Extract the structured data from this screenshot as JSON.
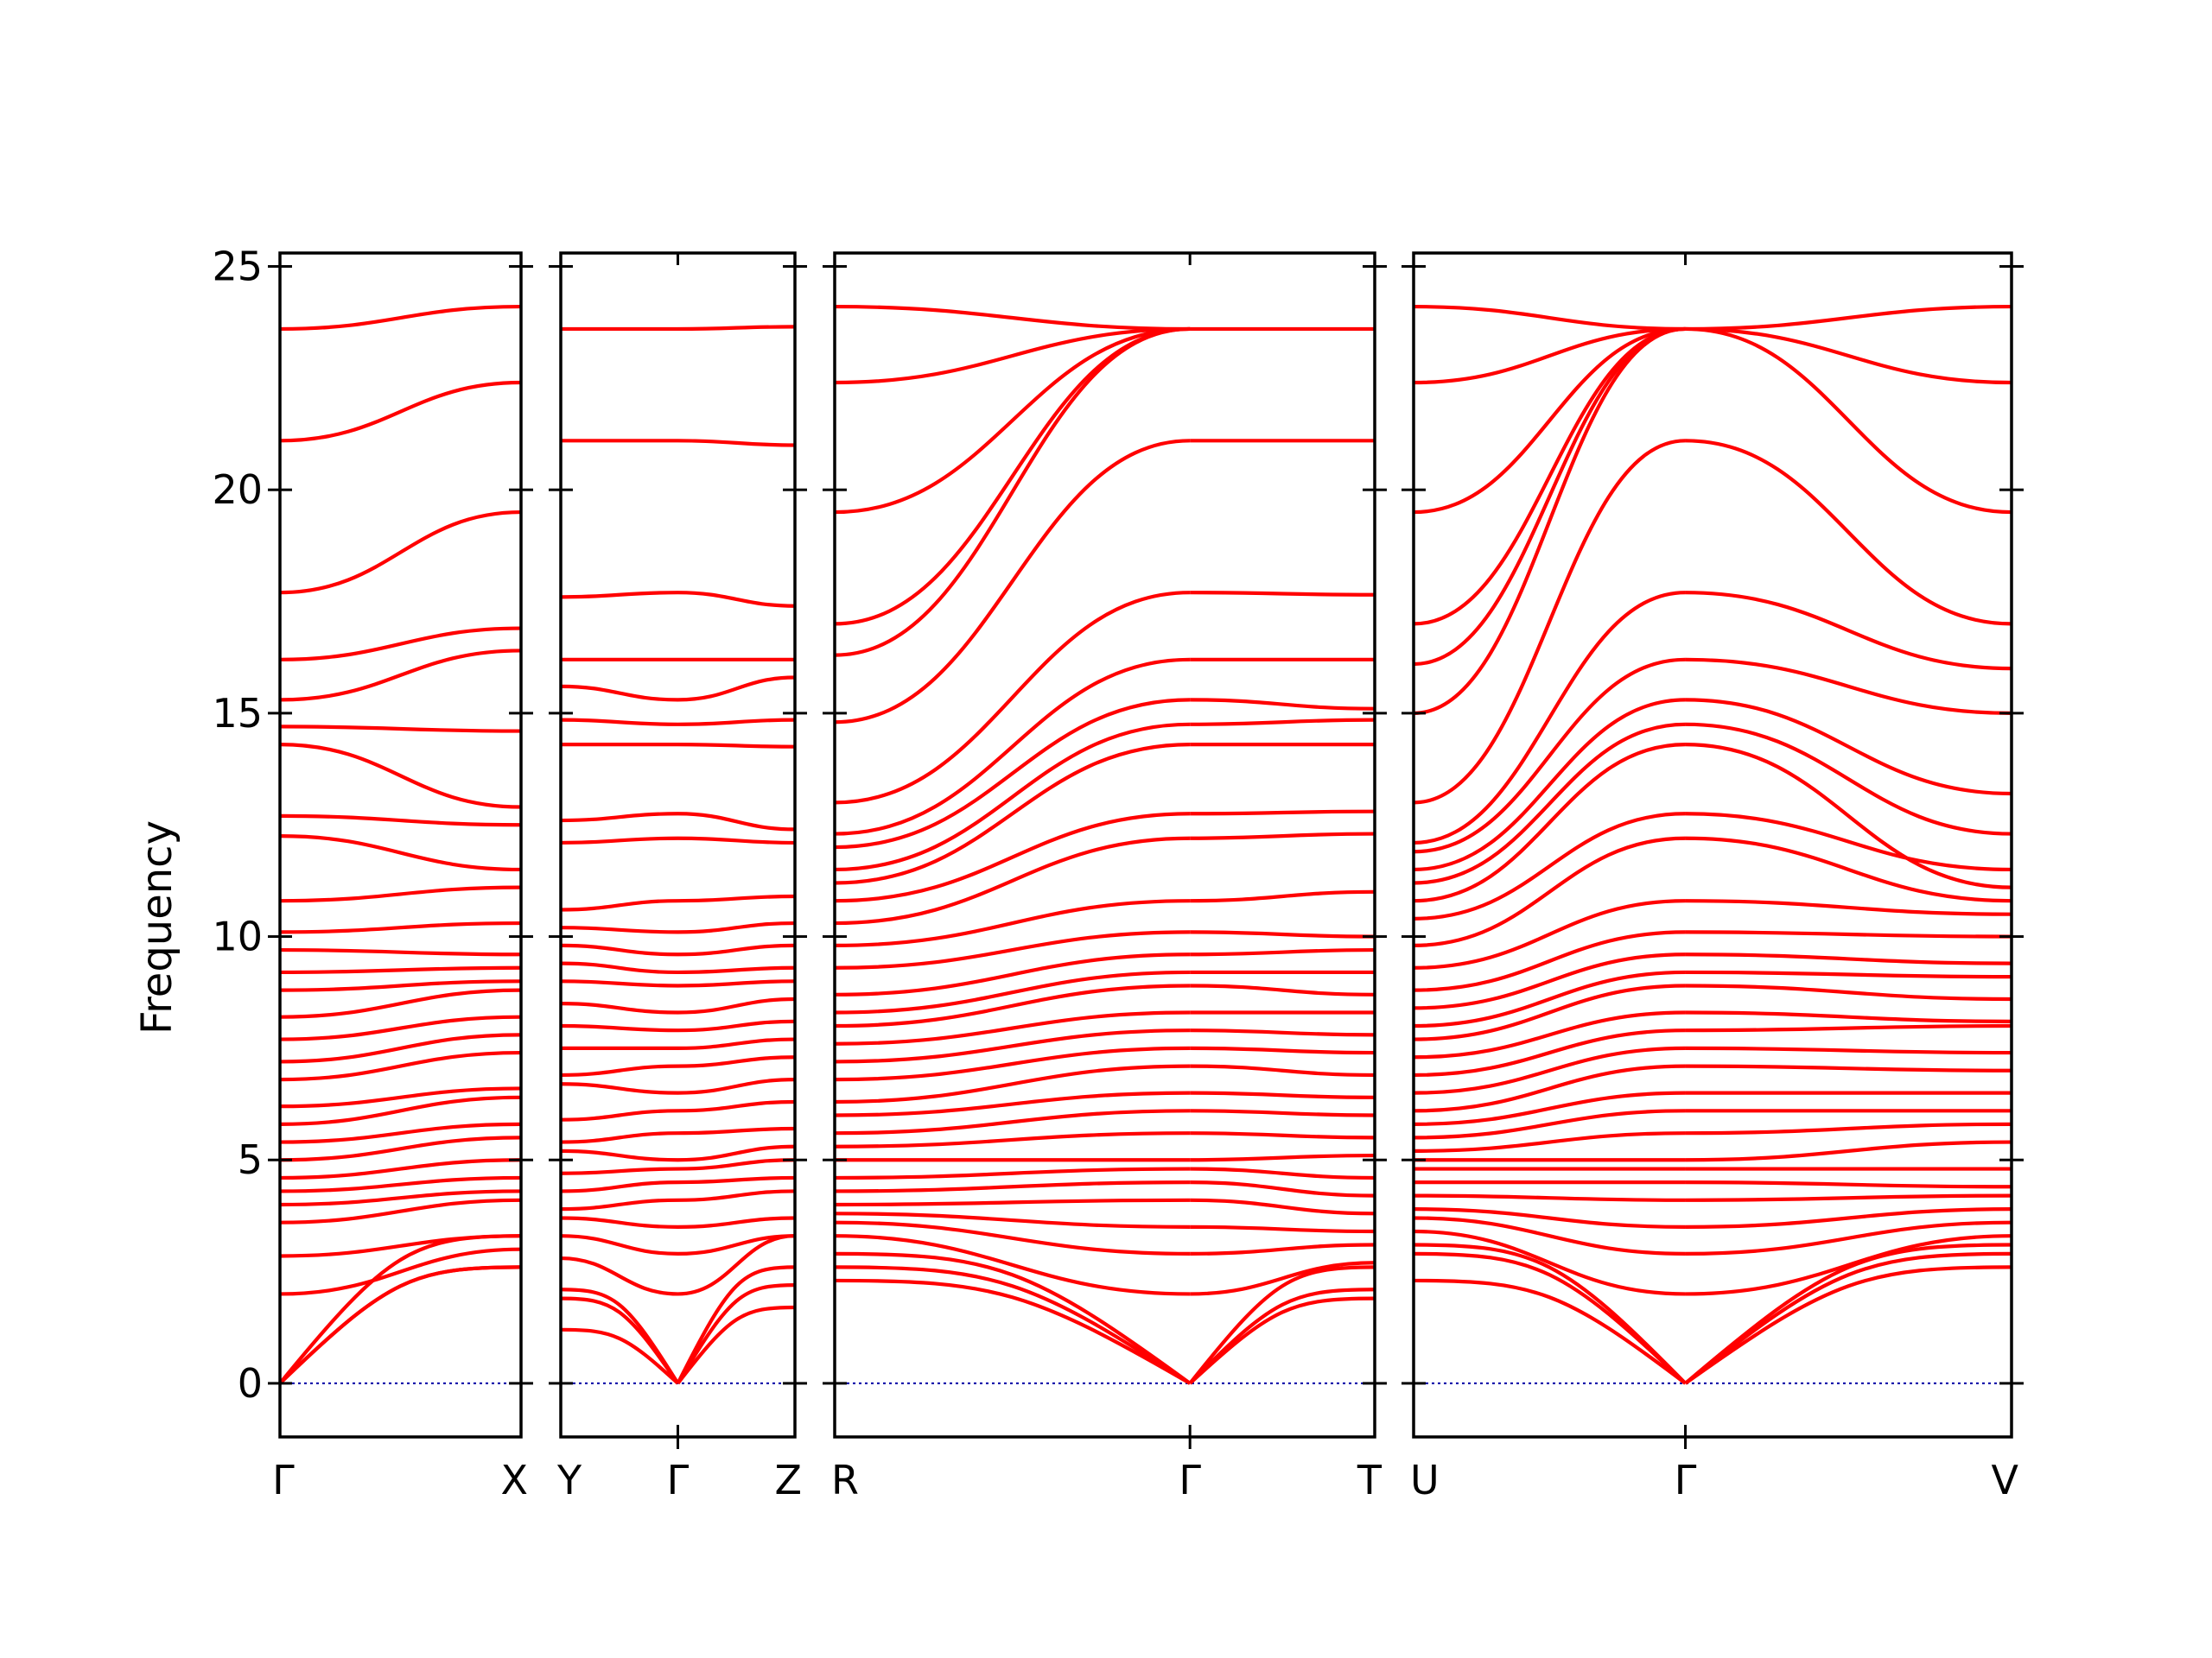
{
  "chart_data": {
    "type": "line",
    "title": "",
    "ylabel": "Frequency",
    "xlabel": "",
    "ylim": [
      -1.2,
      25.3
    ],
    "yticks": [
      0,
      5,
      10,
      15,
      20,
      25
    ],
    "grid": false,
    "legend": "none",
    "colors": {
      "bands": "#ff0000",
      "zero_line": "#0000aa",
      "axes": "#000000"
    },
    "panels": [
      {
        "labels": [
          "Γ",
          "X"
        ],
        "high_symmetry": [
          0,
          1
        ],
        "segments": [
          {
            "x": [
              0,
              1
            ],
            "bands": [
              [
                0,
                2.6
              ],
              [
                0,
                2.6
              ],
              [
                0,
                3.3
              ],
              [
                2.0,
                3.0
              ],
              [
                2.85,
                3.3
              ],
              [
                3.6,
                4.1
              ],
              [
                4.0,
                4.3
              ],
              [
                4.3,
                4.6
              ],
              [
                4.6,
                5.0
              ],
              [
                5.0,
                5.5
              ],
              [
                5.4,
                5.8
              ],
              [
                5.8,
                6.4
              ],
              [
                6.2,
                6.6
              ],
              [
                6.8,
                7.4
              ],
              [
                7.2,
                7.8
              ],
              [
                7.7,
                8.2
              ],
              [
                8.2,
                8.8
              ],
              [
                8.8,
                9.0
              ],
              [
                9.2,
                9.3
              ],
              [
                9.7,
                9.6
              ],
              [
                10.1,
                10.3
              ],
              [
                10.8,
                11.1
              ],
              [
                12.25,
                11.5
              ],
              [
                12.7,
                12.5
              ],
              [
                14.3,
                12.9
              ],
              [
                14.7,
                14.6
              ],
              [
                15.3,
                16.4
              ],
              [
                16.2,
                16.9
              ],
              [
                17.7,
                19.5
              ],
              [
                21.1,
                22.4
              ],
              [
                23.6,
                24.1
              ]
            ]
          }
        ]
      },
      {
        "labels": [
          "Y",
          "Γ",
          "Z"
        ],
        "high_symmetry": [
          0,
          1,
          2
        ],
        "segments": [
          {
            "x": [
              0,
              1
            ],
            "bands": [
              [
                1.2,
                0
              ],
              [
                1.9,
                0
              ],
              [
                2.1,
                0
              ],
              [
                2.8,
                2.0
              ],
              [
                3.3,
                2.9
              ],
              [
                3.7,
                3.5
              ],
              [
                3.9,
                4.1
              ],
              [
                4.3,
                4.5
              ],
              [
                4.7,
                4.8
              ],
              [
                5.2,
                5.0
              ],
              [
                5.4,
                5.6
              ],
              [
                5.9,
                6.1
              ],
              [
                6.7,
                6.5
              ],
              [
                6.9,
                7.1
              ],
              [
                7.5,
                7.5
              ],
              [
                8.0,
                7.9
              ],
              [
                8.5,
                8.3
              ],
              [
                9.0,
                8.9
              ],
              [
                9.4,
                9.2
              ],
              [
                9.8,
                9.6
              ],
              [
                10.2,
                10.1
              ],
              [
                10.6,
                10.8
              ],
              [
                12.1,
                12.2
              ],
              [
                12.6,
                12.75
              ],
              [
                14.3,
                14.3
              ],
              [
                14.85,
                14.75
              ],
              [
                15.6,
                15.3
              ],
              [
                16.2,
                16.2
              ],
              [
                17.6,
                17.7
              ],
              [
                21.1,
                21.1
              ],
              [
                23.6,
                23.6
              ]
            ]
          },
          {
            "x": [
              1,
              2
            ],
            "bands": [
              [
                0,
                1.7
              ],
              [
                0,
                2.2
              ],
              [
                0,
                2.6
              ],
              [
                2.0,
                3.3
              ],
              [
                2.9,
                3.3
              ],
              [
                3.5,
                3.7
              ],
              [
                4.1,
                4.3
              ],
              [
                4.5,
                4.6
              ],
              [
                4.8,
                5.0
              ],
              [
                5.0,
                5.3
              ],
              [
                5.6,
                5.7
              ],
              [
                6.1,
                6.3
              ],
              [
                6.5,
                6.8
              ],
              [
                7.1,
                7.3
              ],
              [
                7.5,
                7.7
              ],
              [
                7.9,
                8.1
              ],
              [
                8.3,
                8.6
              ],
              [
                8.9,
                9.0
              ],
              [
                9.2,
                9.3
              ],
              [
                9.6,
                9.8
              ],
              [
                10.1,
                10.3
              ],
              [
                10.8,
                10.9
              ],
              [
                12.2,
                12.1
              ],
              [
                12.75,
                12.4
              ],
              [
                14.3,
                14.25
              ],
              [
                14.75,
                14.85
              ],
              [
                15.3,
                15.8
              ],
              [
                16.2,
                16.2
              ],
              [
                17.7,
                17.4
              ],
              [
                21.1,
                21.0
              ],
              [
                23.6,
                23.65
              ]
            ]
          }
        ]
      },
      {
        "labels": [
          "R",
          "Γ",
          "T"
        ],
        "high_symmetry": [
          0,
          1,
          1.52
        ],
        "segments": [
          {
            "x": [
              0,
              1
            ],
            "bands": [
              [
                2.3,
                0
              ],
              [
                2.6,
                0
              ],
              [
                2.9,
                0
              ],
              [
                3.3,
                2.0
              ],
              [
                3.6,
                2.9
              ],
              [
                3.8,
                3.5
              ],
              [
                4.0,
                4.1
              ],
              [
                4.3,
                4.5
              ],
              [
                4.6,
                4.8
              ],
              [
                5.0,
                5.0
              ],
              [
                5.3,
                5.6
              ],
              [
                5.6,
                6.1
              ],
              [
                6.0,
                6.5
              ],
              [
                6.3,
                7.1
              ],
              [
                6.8,
                7.5
              ],
              [
                7.2,
                7.9
              ],
              [
                7.6,
                8.3
              ],
              [
                8.0,
                8.9
              ],
              [
                8.3,
                9.2
              ],
              [
                8.7,
                9.6
              ],
              [
                9.3,
                10.1
              ],
              [
                9.8,
                10.8
              ],
              [
                10.3,
                12.2
              ],
              [
                10.8,
                12.75
              ],
              [
                11.2,
                14.3
              ],
              [
                11.5,
                14.75
              ],
              [
                12.0,
                15.3
              ],
              [
                12.3,
                16.2
              ],
              [
                13.0,
                17.7
              ],
              [
                14.8,
                21.1
              ],
              [
                16.3,
                23.6
              ],
              [
                17.0,
                23.6
              ],
              [
                19.5,
                23.6
              ],
              [
                22.4,
                23.6
              ],
              [
                24.1,
                23.6
              ]
            ]
          },
          {
            "x": [
              1,
              1.52
            ],
            "bands": [
              [
                0,
                1.9
              ],
              [
                0,
                2.1
              ],
              [
                0,
                2.6
              ],
              [
                2.0,
                2.7
              ],
              [
                2.9,
                3.1
              ],
              [
                3.5,
                3.4
              ],
              [
                4.1,
                3.8
              ],
              [
                4.5,
                4.2
              ],
              [
                4.8,
                4.6
              ],
              [
                5.0,
                5.1
              ],
              [
                5.6,
                5.5
              ],
              [
                6.1,
                6.0
              ],
              [
                6.5,
                6.4
              ],
              [
                7.1,
                6.9
              ],
              [
                7.5,
                7.4
              ],
              [
                7.9,
                7.8
              ],
              [
                8.3,
                8.3
              ],
              [
                8.9,
                8.7
              ],
              [
                9.2,
                9.2
              ],
              [
                9.6,
                9.7
              ],
              [
                10.1,
                10.0
              ],
              [
                10.8,
                11.0
              ],
              [
                12.2,
                12.3
              ],
              [
                12.75,
                12.8
              ],
              [
                14.3,
                14.3
              ],
              [
                14.75,
                14.85
              ],
              [
                15.3,
                15.1
              ],
              [
                16.2,
                16.2
              ],
              [
                17.7,
                17.65
              ],
              [
                21.1,
                21.1
              ],
              [
                23.6,
                23.6
              ]
            ]
          }
        ]
      },
      {
        "labels": [
          "U",
          "Γ",
          "V"
        ],
        "high_symmetry": [
          0,
          1,
          2.2
        ],
        "segments": [
          {
            "x": [
              0,
              1
            ],
            "bands": [
              [
                2.3,
                0
              ],
              [
                2.9,
                0
              ],
              [
                3.1,
                0
              ],
              [
                3.4,
                2.0
              ],
              [
                3.7,
                2.9
              ],
              [
                3.9,
                3.5
              ],
              [
                4.2,
                4.1
              ],
              [
                4.5,
                4.5
              ],
              [
                4.8,
                4.8
              ],
              [
                5.0,
                5.0
              ],
              [
                5.2,
                5.6
              ],
              [
                5.5,
                6.1
              ],
              [
                5.8,
                6.5
              ],
              [
                6.1,
                7.1
              ],
              [
                6.5,
                7.5
              ],
              [
                6.9,
                7.9
              ],
              [
                7.3,
                8.3
              ],
              [
                7.7,
                8.9
              ],
              [
                8.0,
                9.2
              ],
              [
                8.4,
                9.6
              ],
              [
                8.8,
                10.1
              ],
              [
                9.3,
                10.8
              ],
              [
                9.8,
                12.2
              ],
              [
                10.4,
                12.75
              ],
              [
                10.8,
                14.3
              ],
              [
                11.2,
                14.75
              ],
              [
                11.5,
                15.3
              ],
              [
                11.9,
                16.2
              ],
              [
                12.1,
                17.7
              ],
              [
                13.0,
                21.1
              ],
              [
                15.0,
                23.6
              ],
              [
                16.1,
                23.6
              ],
              [
                17.0,
                23.6
              ],
              [
                19.5,
                23.6
              ],
              [
                22.4,
                23.6
              ],
              [
                24.1,
                23.6
              ]
            ]
          },
          {
            "x": [
              1,
              2.2
            ],
            "bands": [
              [
                0,
                2.6
              ],
              [
                0,
                2.9
              ],
              [
                0,
                3.1
              ],
              [
                2.0,
                3.3
              ],
              [
                2.9,
                3.6
              ],
              [
                3.5,
                3.9
              ],
              [
                4.1,
                4.2
              ],
              [
                4.5,
                4.4
              ],
              [
                4.8,
                4.8
              ],
              [
                5.0,
                5.4
              ],
              [
                5.6,
                5.8
              ],
              [
                6.1,
                6.1
              ],
              [
                6.5,
                6.5
              ],
              [
                7.1,
                7.0
              ],
              [
                7.5,
                7.4
              ],
              [
                7.9,
                8.0
              ],
              [
                8.3,
                8.1
              ],
              [
                8.9,
                8.6
              ],
              [
                9.2,
                9.1
              ],
              [
                9.6,
                9.4
              ],
              [
                10.1,
                10.0
              ],
              [
                10.8,
                10.5
              ],
              [
                12.2,
                10.8
              ],
              [
                12.75,
                11.5
              ],
              [
                14.3,
                11.1
              ],
              [
                14.75,
                12.3
              ],
              [
                15.3,
                13.2
              ],
              [
                16.2,
                15.0
              ],
              [
                17.7,
                16.0
              ],
              [
                21.1,
                17.0
              ],
              [
                23.6,
                19.5
              ],
              [
                23.6,
                22.4
              ],
              [
                23.6,
                24.1
              ]
            ]
          }
        ]
      }
    ]
  }
}
